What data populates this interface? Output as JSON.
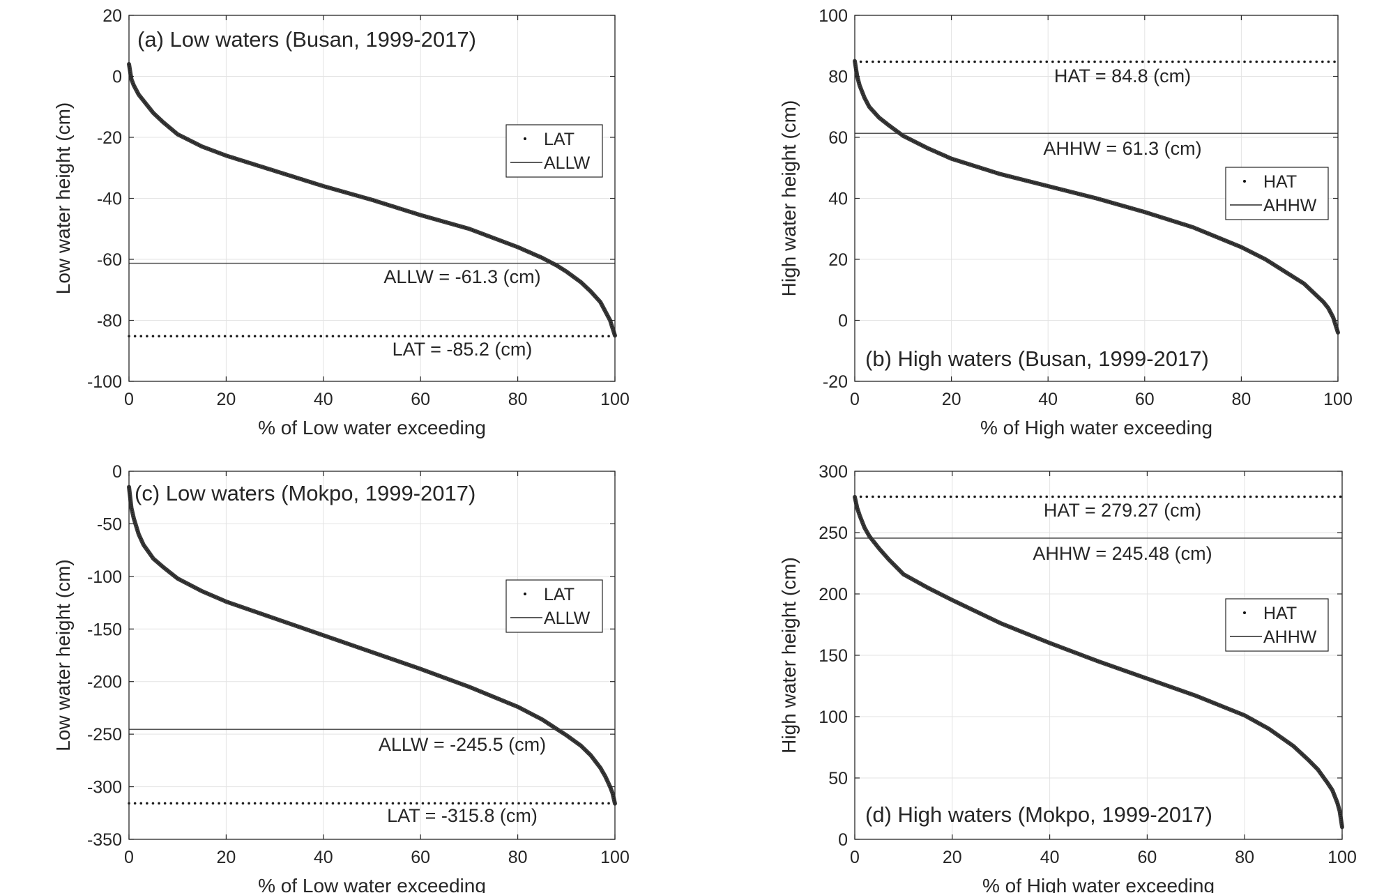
{
  "chart_data": [
    {
      "type": "scatter",
      "title": "(a) Low waters (Busan, 1999-2017)",
      "xlabel": "% of Low water exceeding",
      "ylabel": "Low water height (cm)",
      "xlim": [
        0,
        100
      ],
      "ylim": [
        -100,
        20
      ],
      "xticks": [
        0,
        20,
        40,
        60,
        80,
        100
      ],
      "yticks": [
        -100,
        -80,
        -60,
        -40,
        -20,
        0,
        20
      ],
      "grid": true,
      "legend": {
        "position": "right-middle",
        "entries": [
          "LAT",
          "ALLW"
        ]
      },
      "curve": {
        "x": [
          0,
          0.5,
          1,
          2,
          3,
          5,
          7,
          10,
          15,
          20,
          30,
          40,
          50,
          60,
          70,
          80,
          85,
          88,
          90,
          93,
          95,
          97,
          98,
          99,
          99.5,
          100
        ],
        "y": [
          4,
          -1,
          -3,
          -6,
          -8,
          -12,
          -15,
          -19,
          -23,
          -26,
          -31,
          -36,
          -40.5,
          -45.5,
          -50,
          -56,
          -59.5,
          -62,
          -64,
          -67.5,
          -70.5,
          -74,
          -77,
          -80,
          -82.5,
          -85
        ]
      },
      "lines": [
        {
          "name": "ALLW",
          "style": "solid",
          "value": -61.3,
          "label": "ALLW = -61.3 (cm)"
        },
        {
          "name": "LAT",
          "style": "dotted",
          "value": -85.2,
          "label": "LAT = -85.2 (cm)"
        }
      ]
    },
    {
      "type": "scatter",
      "title": "(b) High waters (Busan, 1999-2017)",
      "xlabel": "% of High water exceeding",
      "ylabel": "High water height (cm)",
      "xlim": [
        0,
        100
      ],
      "ylim": [
        -20,
        100
      ],
      "xticks": [
        0,
        20,
        40,
        60,
        80,
        100
      ],
      "yticks": [
        -20,
        0,
        20,
        40,
        60,
        80,
        100
      ],
      "grid": true,
      "legend": {
        "position": "right-middle",
        "entries": [
          "HAT",
          "AHHW"
        ]
      },
      "curve": {
        "x": [
          0,
          0.5,
          1,
          2,
          3,
          5,
          7,
          10,
          15,
          20,
          30,
          40,
          50,
          60,
          70,
          80,
          85,
          90,
          93,
          95,
          97,
          98,
          99,
          99.5,
          100
        ],
        "y": [
          85,
          80,
          77,
          73,
          70,
          66.5,
          64,
          60.5,
          56.5,
          53,
          48,
          44,
          40,
          35.5,
          30.5,
          24,
          20,
          15,
          12,
          9,
          6,
          4,
          1,
          -1.5,
          -4
        ]
      },
      "lines": [
        {
          "name": "HAT",
          "style": "dotted",
          "value": 84.8,
          "label": "HAT =  84.8 (cm)"
        },
        {
          "name": "AHHW",
          "style": "solid",
          "value": 61.3,
          "label": "AHHW =  61.3 (cm)"
        }
      ]
    },
    {
      "type": "scatter",
      "title": "(c) Low waters (Mokpo, 1999-2017)",
      "xlabel": "% of Low water exceeding",
      "ylabel": "Low water height (cm)",
      "xlim": [
        0,
        100
      ],
      "ylim": [
        -350,
        0
      ],
      "xticks": [
        0,
        20,
        40,
        60,
        80,
        100
      ],
      "yticks": [
        -350,
        -300,
        -250,
        -200,
        -150,
        -100,
        -50,
        0
      ],
      "grid": true,
      "legend": {
        "position": "right-middle",
        "entries": [
          "LAT",
          "ALLW"
        ]
      },
      "curve": {
        "x": [
          0,
          0.5,
          1,
          2,
          3,
          5,
          7,
          10,
          15,
          20,
          30,
          40,
          50,
          60,
          70,
          80,
          85,
          88,
          90,
          93,
          95,
          97,
          98,
          99,
          99.5,
          100
        ],
        "y": [
          -15,
          -35,
          -45,
          -60,
          -70,
          -83,
          -91,
          -102,
          -114,
          -124,
          -140,
          -156,
          -172,
          -188,
          -205,
          -224,
          -236,
          -245,
          -251,
          -261,
          -270,
          -282,
          -290,
          -300,
          -306,
          -316
        ]
      },
      "lines": [
        {
          "name": "ALLW",
          "style": "solid",
          "value": -245.5,
          "label": "ALLW = -245.5 (cm)"
        },
        {
          "name": "LAT",
          "style": "dotted",
          "value": -315.8,
          "label": "LAT = -315.8 (cm)"
        }
      ]
    },
    {
      "type": "scatter",
      "title": "(d) High waters (Mokpo, 1999-2017)",
      "xlabel": "% of High water exceeding",
      "ylabel": "High water height (cm)",
      "xlim": [
        0,
        100
      ],
      "ylim": [
        0,
        300
      ],
      "xticks": [
        0,
        20,
        40,
        60,
        80,
        100
      ],
      "yticks": [
        0,
        50,
        100,
        150,
        200,
        250,
        300
      ],
      "grid": true,
      "legend": {
        "position": "right-middle",
        "entries": [
          "HAT",
          "AHHW"
        ]
      },
      "curve": {
        "x": [
          0,
          0.5,
          1,
          2,
          3,
          5,
          7,
          10,
          15,
          20,
          30,
          40,
          50,
          60,
          70,
          80,
          85,
          90,
          93,
          95,
          97,
          98,
          99,
          99.5,
          100
        ],
        "y": [
          279,
          270,
          264,
          254,
          247,
          237,
          228,
          216,
          205,
          195,
          176,
          160,
          145,
          131,
          117,
          101,
          90,
          76,
          65,
          57,
          46,
          40,
          30,
          23,
          10
        ]
      },
      "lines": [
        {
          "name": "HAT",
          "style": "dotted",
          "value": 279.27,
          "label": "HAT = 279.27 (cm)"
        },
        {
          "name": "AHHW",
          "style": "solid",
          "value": 245.48,
          "label": "AHHW = 245.48 (cm)"
        }
      ]
    }
  ]
}
